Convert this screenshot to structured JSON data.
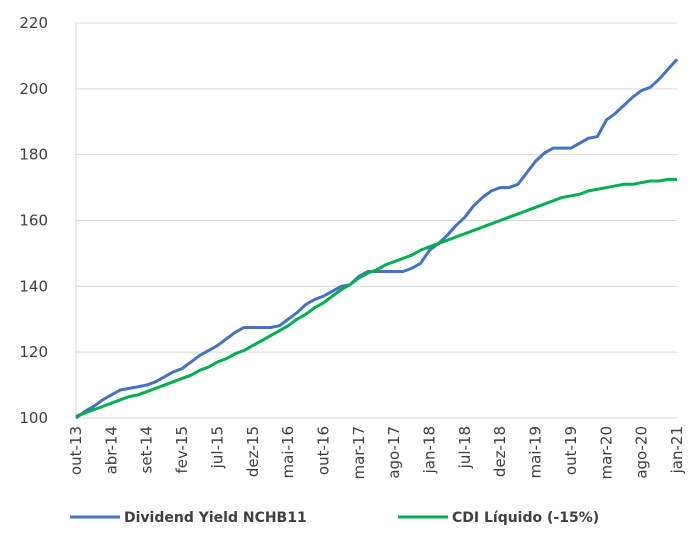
{
  "chart_data": {
    "type": "line",
    "categories": [
      "out-13",
      null,
      null,
      null,
      "abr-14",
      null,
      null,
      null,
      "set-14",
      null,
      null,
      null,
      "fev-15",
      null,
      null,
      null,
      "jul-15",
      null,
      null,
      null,
      "dez-15",
      null,
      null,
      null,
      "mai-16",
      null,
      null,
      null,
      "out-16",
      null,
      null,
      null,
      "mar-17",
      null,
      null,
      null,
      "ago-17",
      null,
      null,
      null,
      "jan-18",
      null,
      null,
      null,
      "jul-18",
      null,
      null,
      null,
      "dez-18",
      null,
      null,
      null,
      "mai-19",
      null,
      null,
      null,
      "out-19",
      null,
      null,
      null,
      "mar-20",
      null,
      null,
      null,
      "ago-20",
      null,
      null,
      null,
      "jan-21"
    ],
    "series": [
      {
        "name": "Dividend Yield NCHB11",
        "color": "#4472c4",
        "values": [
          100,
          102,
          103.5,
          105.5,
          107,
          108.5,
          109,
          109.5,
          110,
          111,
          112.5,
          114,
          115,
          117,
          119,
          120.5,
          122,
          124,
          126,
          127.5,
          127.5,
          127.5,
          127.5,
          128,
          130,
          132,
          134.5,
          136,
          137,
          138.5,
          140,
          140.5,
          143,
          144.5,
          144.5,
          144.5,
          144.5,
          144.5,
          145.5,
          147,
          151,
          153,
          155.5,
          158.5,
          161,
          164.5,
          167,
          169,
          170,
          170,
          171,
          174.5,
          178,
          180.5,
          182,
          182,
          182,
          183.5,
          185,
          185.5,
          190.5,
          192.5,
          195,
          197.5,
          199.5,
          200.5,
          203,
          206,
          209
        ]
      },
      {
        "name": "CDI Líquido (-15%)",
        "color": "#00b050",
        "values": [
          100.5,
          101.5,
          102.5,
          103.5,
          104.5,
          105.5,
          106.5,
          107,
          108,
          109,
          110,
          111,
          112,
          113,
          114.5,
          115.5,
          117,
          118,
          119.5,
          120.5,
          122,
          123.5,
          125,
          126.5,
          128,
          130,
          131.5,
          133.5,
          135,
          137,
          139,
          140.5,
          142.5,
          144,
          145,
          146.5,
          147.5,
          148.5,
          149.5,
          151,
          152,
          153,
          154,
          155,
          156,
          157,
          158,
          159,
          160,
          161,
          162,
          163,
          164,
          165,
          166,
          167,
          167.5,
          168,
          169,
          169.5,
          170,
          170.5,
          171,
          171,
          171.5,
          172,
          172,
          172.5,
          172.5
        ]
      }
    ],
    "ylim": [
      100,
      220
    ],
    "yticks": [
      100,
      120,
      140,
      160,
      180,
      200,
      220
    ],
    "grid": true,
    "legend": "bottom"
  }
}
